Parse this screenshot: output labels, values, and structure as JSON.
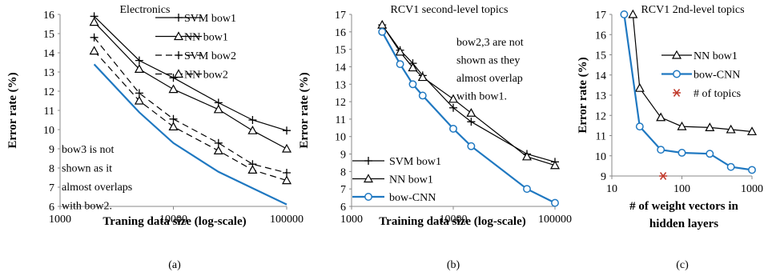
{
  "chart_data": [
    {
      "type": "line",
      "title": "Electronics",
      "panel_label": "(a)",
      "xlabel": "Traning data size (log-scale)",
      "ylabel": "Error rate (%)",
      "x_scale": "log",
      "xlim": [
        1000,
        100000
      ],
      "ylim": [
        6,
        16
      ],
      "grid": false,
      "legend_position": "top-right",
      "x_ticks": [
        "1000",
        "10000",
        "100000"
      ],
      "y_ticks": [
        "6",
        "7",
        "8",
        "9",
        "10",
        "11",
        "12",
        "13",
        "14",
        "15",
        "16"
      ],
      "annotation": [
        "bow3 is not",
        "shown as it",
        "almost overlaps",
        "with bow2."
      ],
      "series": [
        {
          "name": "SVM bow1",
          "x": [
            2000,
            5000,
            10000,
            25000,
            50000,
            100000
          ],
          "y": [
            15.9,
            13.6,
            12.7,
            11.4,
            10.5,
            9.95
          ],
          "color": "#000000",
          "dash": "solid",
          "marker": "plus"
        },
        {
          "name": "NN bow1",
          "x": [
            2000,
            5000,
            10000,
            25000,
            50000,
            100000
          ],
          "y": [
            15.6,
            13.15,
            12.1,
            11.05,
            9.95,
            9.0
          ],
          "color": "#000000",
          "dash": "solid",
          "marker": "triangle"
        },
        {
          "name": "SVM bow2",
          "x": [
            2000,
            5000,
            10000,
            25000,
            50000,
            100000
          ],
          "y": [
            14.8,
            11.9,
            10.55,
            9.3,
            8.2,
            7.75
          ],
          "color": "#000000",
          "dash": "dashed",
          "marker": "plus"
        },
        {
          "name": "NN bow2",
          "x": [
            2000,
            5000,
            10000,
            25000,
            50000,
            100000
          ],
          "y": [
            14.1,
            11.5,
            10.15,
            8.9,
            7.9,
            7.35
          ],
          "color": "#000000",
          "dash": "dashed",
          "marker": "triangle"
        },
        {
          "x": [
            2000,
            5000,
            10000,
            25000,
            50000,
            100000
          ],
          "y": [
            13.4,
            10.9,
            9.3,
            7.8,
            6.95,
            6.1
          ],
          "color": "#1f78c1",
          "dash": "solid",
          "marker": "none"
        }
      ]
    },
    {
      "type": "line",
      "title": "RCV1 second-level topics",
      "panel_label": "(b)",
      "xlabel": "Training data size (log-scale)",
      "ylabel": "Error rate (%)",
      "x_scale": "log",
      "xlim": [
        1000,
        100000
      ],
      "ylim": [
        6,
        17
      ],
      "grid": false,
      "legend_position": "bottom-left",
      "x_ticks": [
        "1000",
        "10000",
        "100000"
      ],
      "y_ticks": [
        "6",
        "7",
        "8",
        "9",
        "10",
        "11",
        "12",
        "13",
        "14",
        "15",
        "16",
        "17"
      ],
      "annotation": [
        "bow2,3 are not",
        "shown as they",
        "almost overlap",
        "with bow1."
      ],
      "series": [
        {
          "name": "SVM bow1",
          "x": [
            2000,
            3000,
            4000,
            5000,
            10000,
            15000,
            53000,
            100000
          ],
          "y": [
            16.4,
            14.95,
            14.2,
            13.5,
            11.65,
            10.85,
            9.0,
            8.55
          ],
          "color": "#000000",
          "dash": "solid",
          "marker": "plus"
        },
        {
          "name": "NN bow1",
          "x": [
            2000,
            3000,
            4000,
            5000,
            10000,
            15000,
            53000,
            100000
          ],
          "y": [
            16.4,
            14.85,
            13.95,
            13.4,
            12.15,
            11.35,
            8.85,
            8.35
          ],
          "color": "#000000",
          "dash": "solid",
          "marker": "triangle"
        },
        {
          "name": "bow-CNN",
          "x": [
            2000,
            3000,
            4000,
            5000,
            10000,
            15000,
            53000,
            100000
          ],
          "y": [
            16.0,
            14.15,
            13.0,
            12.35,
            10.45,
            9.45,
            7.0,
            6.2
          ],
          "color": "#1f78c1",
          "dash": "solid",
          "marker": "circle"
        }
      ]
    },
    {
      "type": "line",
      "title": "RCV1 2nd-level topics",
      "panel_label": "(c)",
      "xlabel": "# of weight vectors in hidden layers",
      "ylabel": "Error rate (%)",
      "x_scale": "log",
      "xlim": [
        10,
        1000
      ],
      "ylim": [
        9,
        17
      ],
      "grid": false,
      "legend_position": "top-right",
      "x_ticks": [
        "10",
        "100",
        "1000"
      ],
      "y_ticks": [
        "9",
        "10",
        "11",
        "12",
        "13",
        "14",
        "15",
        "16",
        "17"
      ],
      "series": [
        {
          "name": "NN bow1",
          "x": [
            20,
            25,
            50,
            100,
            250,
            500,
            1000
          ],
          "y": [
            17.0,
            13.35,
            11.9,
            11.45,
            11.4,
            11.3,
            11.2
          ],
          "color": "#000000",
          "dash": "solid",
          "marker": "triangle"
        },
        {
          "name": "bow-CNN",
          "x": [
            15,
            25,
            50,
            100,
            250,
            500,
            1000
          ],
          "y": [
            17.0,
            11.45,
            10.3,
            10.15,
            10.1,
            9.45,
            9.3
          ],
          "color": "#1f78c1",
          "dash": "solid",
          "marker": "circle"
        },
        {
          "name": "# of topics",
          "x": [
            54
          ],
          "y": [
            9.0
          ],
          "color": "#c0392b",
          "dash": "none",
          "marker": "asterisk"
        }
      ]
    }
  ]
}
